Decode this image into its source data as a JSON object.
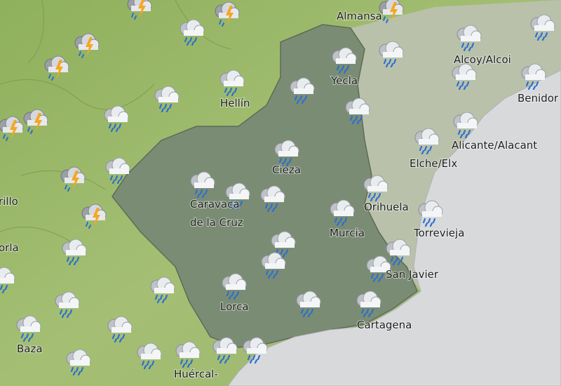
{
  "map": {
    "places": [
      {
        "label": "Almansa"
      },
      {
        "label": "Alcoy/Alcoi"
      },
      {
        "label": "Yecla"
      },
      {
        "label": "Hellín"
      },
      {
        "label": "Benidor"
      },
      {
        "label": "Alicante/Alacant"
      },
      {
        "label": "Elche/Elx"
      },
      {
        "label": "Cieza"
      },
      {
        "label": "Caravaca"
      },
      {
        "label": "de la Cruz"
      },
      {
        "label": "Orihuela"
      },
      {
        "label": "Murcia"
      },
      {
        "label": "Torrevieja"
      },
      {
        "label": "San Javier"
      },
      {
        "label": "Lorca"
      },
      {
        "label": "Cartagena"
      },
      {
        "label": "Baza"
      },
      {
        "label": "Huércal-"
      },
      {
        "label": "rillo"
      },
      {
        "label": "orla"
      }
    ]
  }
}
